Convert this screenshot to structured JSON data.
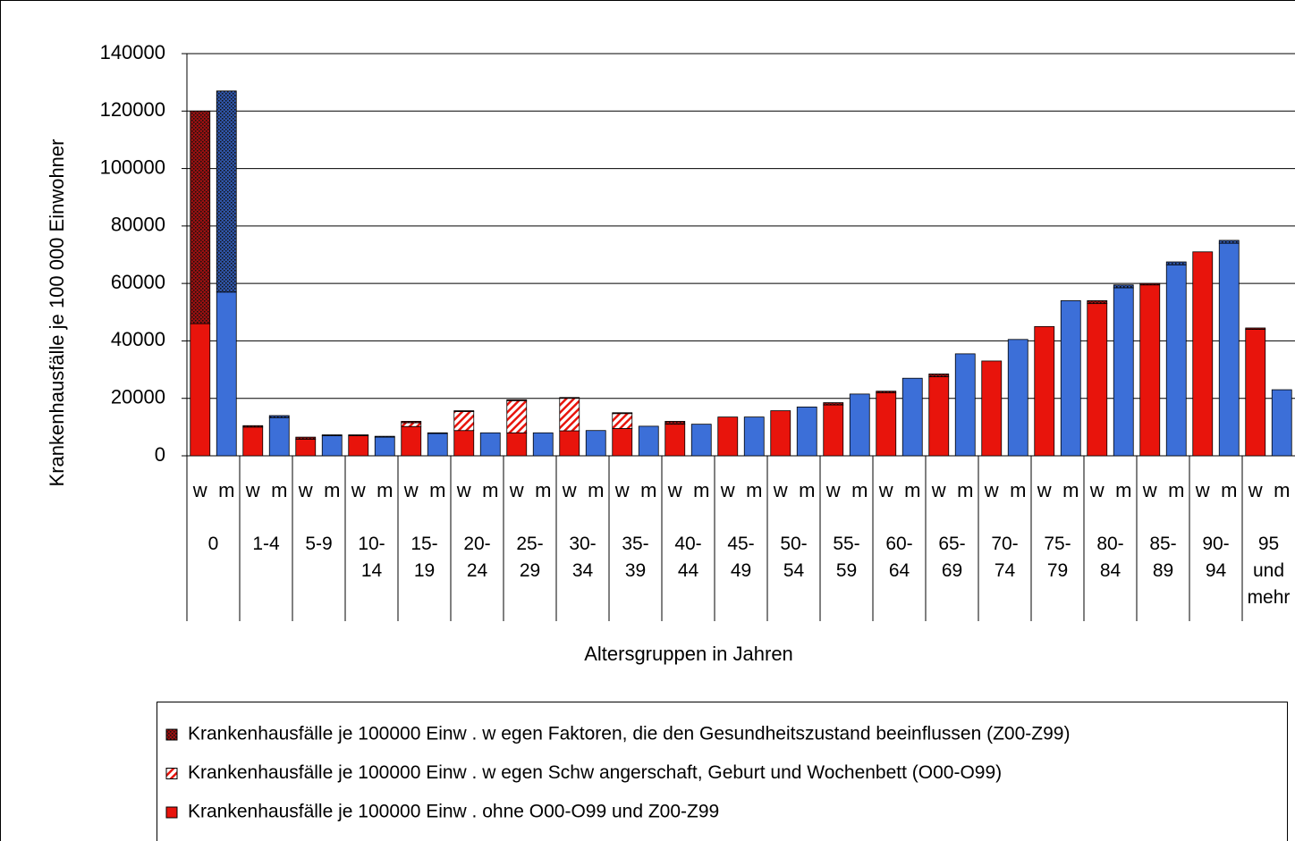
{
  "chart_data": {
    "type": "bar",
    "stacked": true,
    "y_label": "Krankenhausfälle je 100 000 Einwohner",
    "x_label": "Altersgruppen in Jahren",
    "groups": [
      "0",
      "1-4",
      "5-9",
      "10- 14",
      "15- 19",
      "20- 24",
      "25- 29",
      "30- 34",
      "35- 39",
      "40- 44",
      "45- 49",
      "50- 54",
      "55- 59",
      "60- 64",
      "65- 69",
      "70- 74",
      "75- 79",
      "80- 84",
      "85- 89",
      "90- 94",
      "95 und mehr"
    ],
    "sexes": [
      "w",
      "m"
    ],
    "ylim": [
      0,
      140000
    ],
    "yticks": [
      0,
      20000,
      40000,
      60000,
      80000,
      100000,
      120000,
      140000
    ],
    "grid": true,
    "legend": "bottom",
    "series": [
      {
        "name": "Krankenhausfälle je 100000 Einw . ohne O00-O99 und Z00-Z99",
        "pattern": "solid",
        "colors": [
          "#e8140c",
          "#3c6fd8"
        ],
        "values": [
          46000,
          57000,
          10000,
          13300,
          5800,
          7000,
          7000,
          6500,
          10200,
          7800,
          8800,
          8000,
          8000,
          8000,
          8700,
          8800,
          9500,
          10300,
          11000,
          11000,
          13500,
          13500,
          15700,
          17000,
          17700,
          21500,
          22000,
          27000,
          27500,
          35500,
          33000,
          40500,
          45000,
          54000,
          53000,
          58500,
          59500,
          66500,
          71000,
          74000,
          44000,
          23000
        ]
      },
      {
        "name": "Krankenhausfälle je 100000 Einw . w egen Schw angerschaft, Geburt und Wochenbett (O00-O99)",
        "pattern": "hatch",
        "colors": [
          "#e8140c",
          "#3c6fd8"
        ],
        "values": [
          0,
          0,
          0,
          0,
          0,
          0,
          0,
          0,
          1300,
          0,
          6600,
          0,
          11200,
          0,
          11300,
          0,
          5200,
          0,
          0,
          0,
          0,
          0,
          0,
          0,
          0,
          0,
          0,
          0,
          0,
          0,
          0,
          0,
          0,
          0,
          0,
          0,
          0,
          0,
          0,
          0,
          0,
          0
        ]
      },
      {
        "name": "Krankenhausfälle je 100000 Einw . w egen Faktoren, die den Gesundheitszustand beeinflussen (Z00-Z99)",
        "pattern": "dots",
        "colors": [
          "#9a1010",
          "#2f55a8"
        ],
        "values": [
          74000,
          70000,
          500,
          700,
          700,
          300,
          300,
          300,
          500,
          200,
          300,
          0,
          300,
          0,
          300,
          0,
          300,
          0,
          1000,
          0,
          0,
          0,
          0,
          0,
          800,
          0,
          500,
          0,
          1000,
          0,
          0,
          0,
          0,
          0,
          1000,
          1000,
          500,
          1000,
          0,
          1000,
          500,
          0
        ]
      }
    ]
  }
}
